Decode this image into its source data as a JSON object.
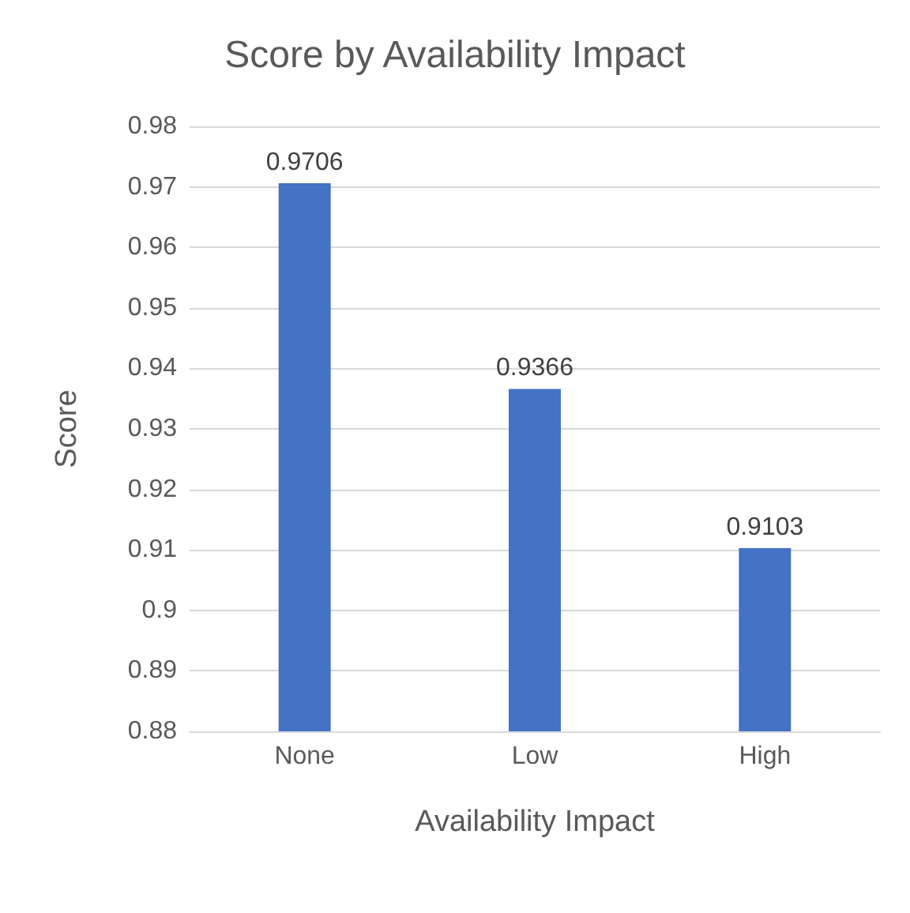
{
  "chart_data": {
    "type": "bar",
    "title": "Score by Availability Impact",
    "xlabel": "Availability Impact",
    "ylabel": "Score",
    "categories": [
      "None",
      "Low",
      "High"
    ],
    "values": [
      0.9706,
      0.9366,
      0.9103
    ],
    "color": "#4472c4",
    "ylim": [
      0.88,
      0.98
    ],
    "yticks": [
      0.88,
      0.89,
      0.9,
      0.91,
      0.92,
      0.93,
      0.94,
      0.95,
      0.96,
      0.97,
      0.98
    ],
    "grid": "y",
    "data_labels": true
  }
}
